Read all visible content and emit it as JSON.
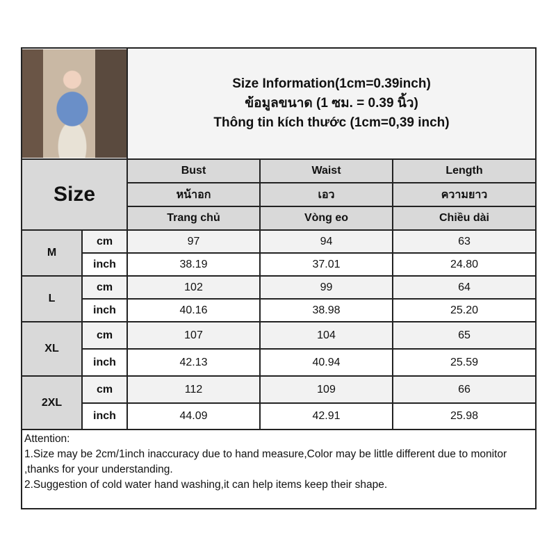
{
  "header": {
    "title_en": "Size Information(1cm=0.39inch)",
    "title_th": "ข้อมูลขนาด (1 ซม. = 0.39 นิ้ว)",
    "title_vi": "Thông tin kích thước (1cm=0,39 inch)"
  },
  "size_label": "Size",
  "columns": [
    {
      "en": "Bust",
      "th": "หน้าอก",
      "vi": "Trang chủ"
    },
    {
      "en": "Waist",
      "th": "เอว",
      "vi": "Vòng eo"
    },
    {
      "en": "Length",
      "th": "ความยาว",
      "vi": "Chiều dài"
    }
  ],
  "rows": [
    {
      "size": "M",
      "cm_label": "cm",
      "inch_label": "inch",
      "cm": [
        "97",
        "94",
        "63"
      ],
      "inch": [
        "38.19",
        "37.01",
        "24.80"
      ]
    },
    {
      "size": "L",
      "cm_label": "cm",
      "inch_label": "inch",
      "cm": [
        "102",
        "99",
        "64"
      ],
      "inch": [
        "40.16",
        "38.98",
        "25.20"
      ]
    },
    {
      "size": "XL",
      "cm_label": "cm",
      "inch_label": "inch",
      "cm": [
        "107",
        "104",
        "65"
      ],
      "inch": [
        "42.13",
        "40.94",
        "25.59"
      ]
    },
    {
      "size": "2XL",
      "cm_label": "cm",
      "inch_label": "inch",
      "cm": [
        "112",
        "109",
        "66"
      ],
      "inch": [
        "44.09",
        "42.91",
        "25.98"
      ]
    }
  ],
  "attention": {
    "heading": "Attention:",
    "line1": "1.Size may be 2cm/1inch inaccuracy due to hand measure,Color may be little different due to monitor ,thanks for your understanding.",
    "line2": "2.Suggestion of cold water hand washing,it can help items keep their shape."
  }
}
